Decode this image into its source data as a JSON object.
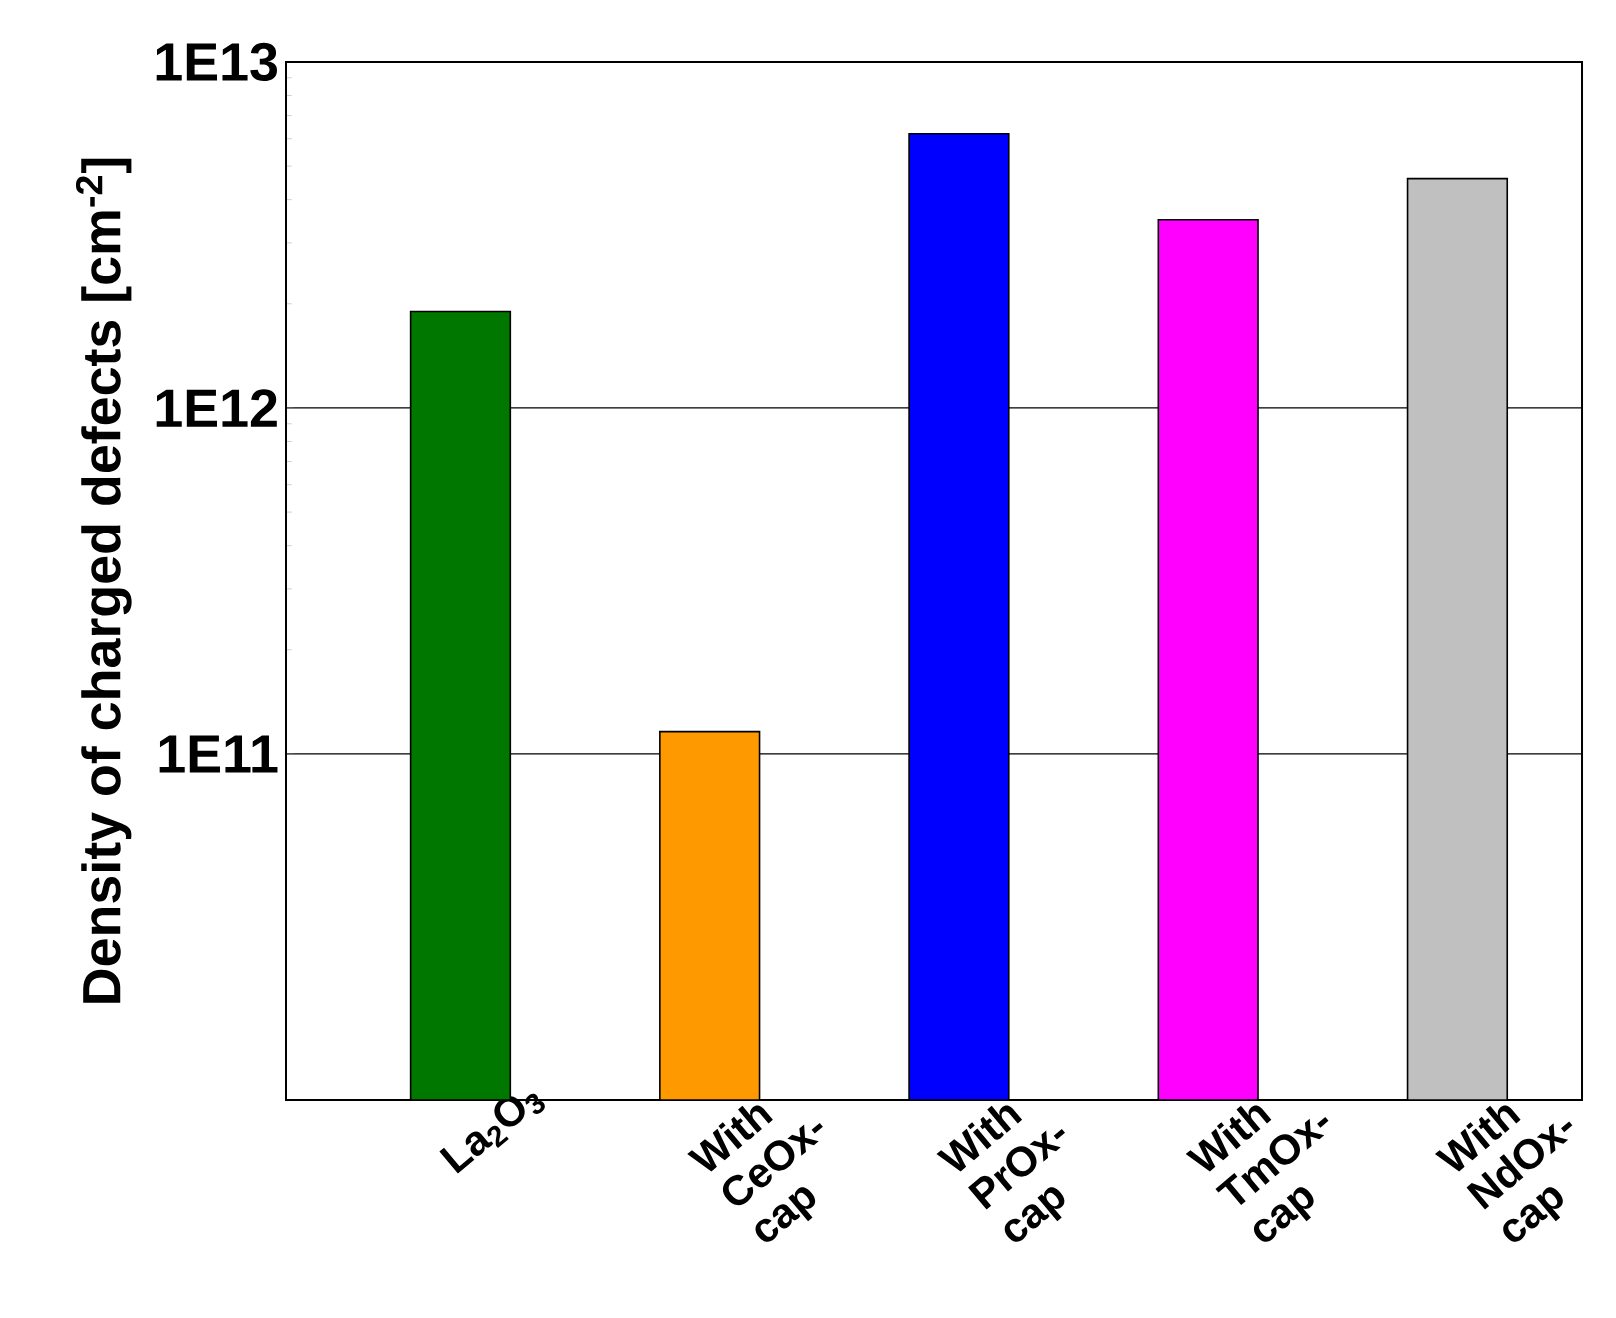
{
  "chart_data": {
    "type": "bar",
    "ylabel": "Density of charged defects [cm$^{-2}$]",
    "categories": [
      "La$_{2}$O$_{3}$",
      "With CeOx-cap",
      "With PrOx-cap",
      "With TmOx-cap",
      "With NdOx-cap"
    ],
    "values": [
      1900000000000.0,
      116000000000.0,
      6200000000000.0,
      3500000000000.0,
      4600000000000.0
    ],
    "colors": [
      "#007800",
      "#ff9900",
      "#0000ff",
      "#ff00ff",
      "#c0c0c0"
    ],
    "log": true,
    "ylim": [
      10000000000.0,
      10000000000000.0
    ],
    "yticks": [
      {
        "value": 100000000000.0,
        "label": "1E11"
      },
      {
        "value": 1000000000000.0,
        "label": "1E12"
      },
      {
        "value": 10000000000000.0,
        "label": "1E13"
      }
    ],
    "grid": "y"
  }
}
